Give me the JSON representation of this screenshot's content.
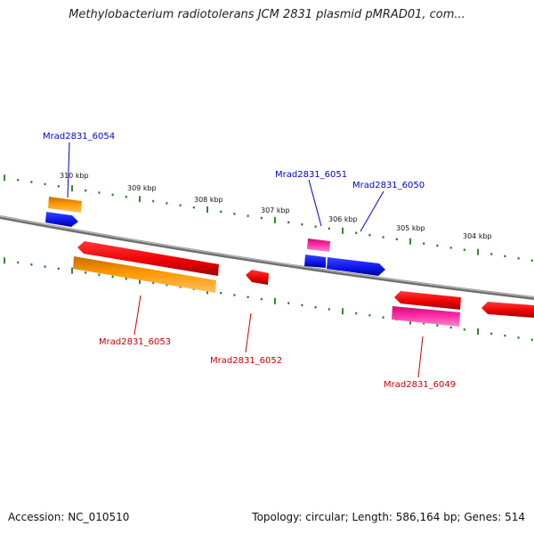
{
  "title": "Methylobacterium radiotolerans JCM 2831 plasmid pMRAD01, com...",
  "footer": {
    "accession": "Accession: NC_010510",
    "summary": "Topology: circular; Length: 586,164 bp; Genes: 514"
  },
  "scale": {
    "tick_labels": [
      "310 kbp",
      "309 kbp",
      "308 kbp",
      "307 kbp",
      "306 kbp",
      "305 kbp",
      "304 kbp"
    ]
  },
  "colors": {
    "backbone": "#8a8a8a",
    "tick": "#1a7a1a",
    "forward_label": "#0000cc",
    "reverse_label": "#cc0000",
    "blue": "#0a14e6",
    "red": "#ee0000",
    "orange": "#ff9900",
    "pink": "#ff2aa6"
  },
  "genes": [
    {
      "name": "Mrad2831_6054",
      "strand": "forward"
    },
    {
      "name": "Mrad2831_6051",
      "strand": "forward"
    },
    {
      "name": "Mrad2831_6050",
      "strand": "forward"
    },
    {
      "name": "Mrad2831_6053",
      "strand": "reverse"
    },
    {
      "name": "Mrad2831_6052",
      "strand": "reverse"
    },
    {
      "name": "Mrad2831_6049",
      "strand": "reverse"
    }
  ]
}
